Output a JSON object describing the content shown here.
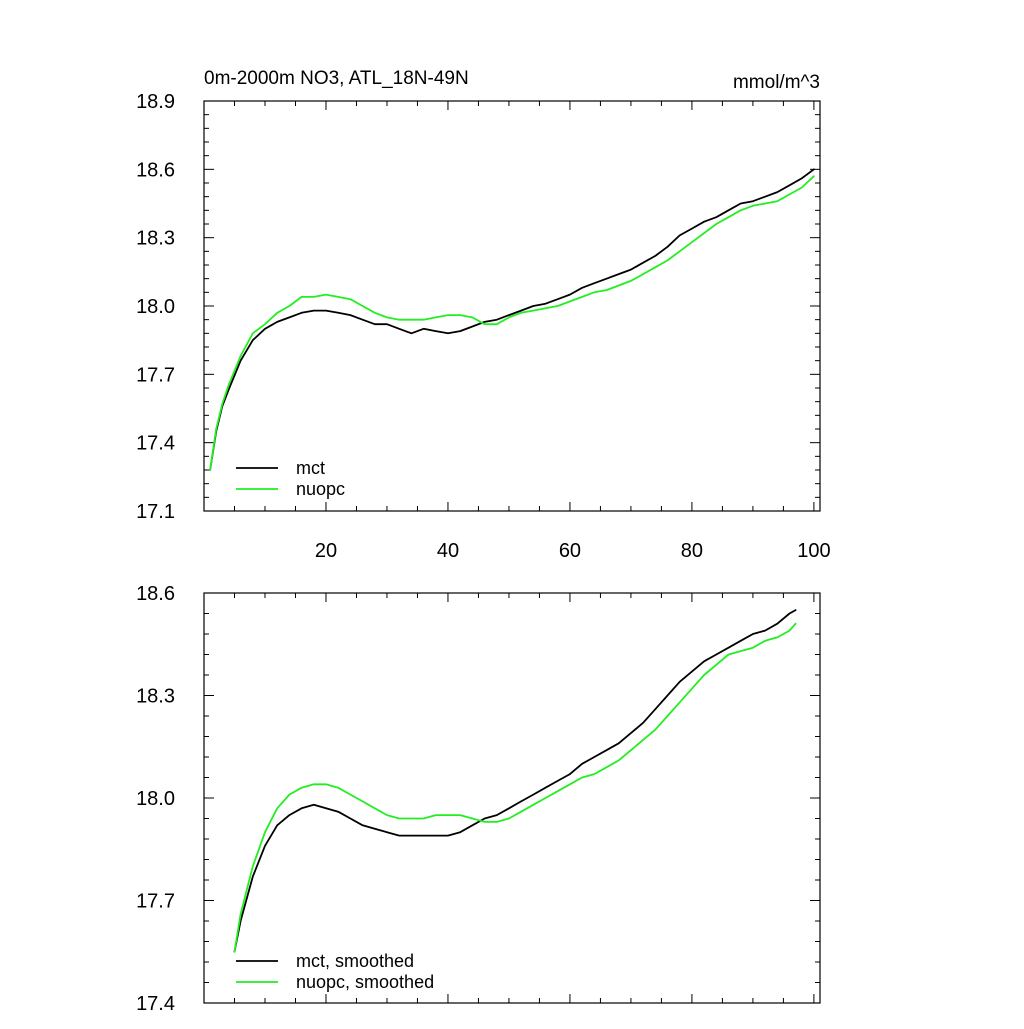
{
  "title_left": "0m-2000m NO3, ATL_18N-49N",
  "title_right": "mmol/m^3",
  "colors": {
    "mct": "#000000",
    "nuopc": "#22ee22",
    "axes": "#000000"
  },
  "chart_data": [
    {
      "type": "line",
      "title": "0m-2000m NO3, ATL_18N-49N",
      "units": "mmol/m^3",
      "xlim": [
        0,
        101
      ],
      "ylim": [
        17.1,
        18.9
      ],
      "xticks": [
        20,
        40,
        60,
        80,
        100
      ],
      "xtick_labels": [
        "20",
        "40",
        "60",
        "80",
        "100"
      ],
      "yticks": [
        17.1,
        17.4,
        17.7,
        18.0,
        18.3,
        18.6,
        18.9
      ],
      "ytick_labels": [
        "17.1",
        "17.4",
        "17.7",
        "18.0",
        "18.3",
        "18.6",
        "18.9"
      ],
      "legend": [
        "mct",
        "nuopc"
      ],
      "legend_position": "bottom-left",
      "series": [
        {
          "name": "mct",
          "color": "#000000",
          "x": [
            1,
            2,
            3,
            4,
            6,
            8,
            10,
            12,
            14,
            16,
            18,
            20,
            22,
            24,
            26,
            28,
            30,
            32,
            34,
            36,
            38,
            40,
            42,
            44,
            46,
            48,
            50,
            52,
            54,
            56,
            58,
            60,
            62,
            64,
            66,
            68,
            70,
            72,
            74,
            76,
            78,
            80,
            82,
            84,
            86,
            88,
            90,
            92,
            94,
            96,
            98,
            100
          ],
          "y": [
            17.28,
            17.45,
            17.56,
            17.63,
            17.76,
            17.85,
            17.9,
            17.93,
            17.95,
            17.97,
            17.98,
            17.98,
            17.97,
            17.96,
            17.94,
            17.92,
            17.92,
            17.9,
            17.88,
            17.9,
            17.89,
            17.88,
            17.89,
            17.91,
            17.93,
            17.94,
            17.96,
            17.98,
            18.0,
            18.01,
            18.03,
            18.05,
            18.08,
            18.1,
            18.12,
            18.14,
            18.16,
            18.19,
            18.22,
            18.26,
            18.31,
            18.34,
            18.37,
            18.39,
            18.42,
            18.45,
            18.46,
            18.48,
            18.5,
            18.53,
            18.56,
            18.6
          ]
        },
        {
          "name": "nuopc",
          "color": "#22ee22",
          "x": [
            1,
            2,
            3,
            4,
            6,
            8,
            10,
            12,
            14,
            16,
            18,
            20,
            22,
            24,
            26,
            28,
            30,
            32,
            34,
            36,
            38,
            40,
            42,
            44,
            46,
            48,
            50,
            52,
            54,
            56,
            58,
            60,
            62,
            64,
            66,
            68,
            70,
            72,
            74,
            76,
            78,
            80,
            82,
            84,
            86,
            88,
            90,
            92,
            94,
            96,
            98,
            100
          ],
          "y": [
            17.28,
            17.46,
            17.57,
            17.65,
            17.78,
            17.88,
            17.92,
            17.97,
            18.0,
            18.04,
            18.04,
            18.05,
            18.04,
            18.03,
            18.0,
            17.97,
            17.95,
            17.94,
            17.94,
            17.94,
            17.95,
            17.96,
            17.96,
            17.95,
            17.92,
            17.92,
            17.95,
            17.97,
            17.98,
            17.99,
            18.0,
            18.02,
            18.04,
            18.06,
            18.07,
            18.09,
            18.11,
            18.14,
            18.17,
            18.2,
            18.24,
            18.28,
            18.32,
            18.36,
            18.39,
            18.42,
            18.44,
            18.45,
            18.46,
            18.49,
            18.52,
            18.57
          ]
        }
      ]
    },
    {
      "type": "line",
      "xlim": [
        0,
        101
      ],
      "ylim": [
        17.4,
        18.6
      ],
      "xticks": [
        20,
        40,
        60,
        80,
        100
      ],
      "xtick_labels": [],
      "yticks": [
        17.4,
        17.7,
        18.0,
        18.3,
        18.6
      ],
      "ytick_labels": [
        "17.4",
        "17.7",
        "18.0",
        "18.3",
        "18.6"
      ],
      "legend": [
        "mct, smoothed",
        "nuopc, smoothed"
      ],
      "legend_position": "bottom-left",
      "series": [
        {
          "name": "mct, smoothed",
          "color": "#000000",
          "x": [
            5,
            6,
            8,
            10,
            12,
            14,
            16,
            18,
            20,
            22,
            24,
            26,
            28,
            30,
            32,
            34,
            36,
            38,
            40,
            42,
            44,
            46,
            48,
            50,
            52,
            54,
            56,
            58,
            60,
            62,
            64,
            66,
            68,
            70,
            72,
            74,
            76,
            78,
            80,
            82,
            84,
            86,
            88,
            90,
            92,
            94,
            96,
            97
          ],
          "y": [
            17.55,
            17.64,
            17.77,
            17.86,
            17.92,
            17.95,
            17.97,
            17.98,
            17.97,
            17.96,
            17.94,
            17.92,
            17.91,
            17.9,
            17.89,
            17.89,
            17.89,
            17.89,
            17.89,
            17.9,
            17.92,
            17.94,
            17.95,
            17.97,
            17.99,
            18.01,
            18.03,
            18.05,
            18.07,
            18.1,
            18.12,
            18.14,
            18.16,
            18.19,
            18.22,
            18.26,
            18.3,
            18.34,
            18.37,
            18.4,
            18.42,
            18.44,
            18.46,
            18.48,
            18.49,
            18.51,
            18.54,
            18.55
          ]
        },
        {
          "name": "nuopc, smoothed",
          "color": "#22ee22",
          "x": [
            5,
            6,
            8,
            10,
            12,
            14,
            16,
            18,
            20,
            22,
            24,
            26,
            28,
            30,
            32,
            34,
            36,
            38,
            40,
            42,
            44,
            46,
            48,
            50,
            52,
            54,
            56,
            58,
            60,
            62,
            64,
            66,
            68,
            70,
            72,
            74,
            76,
            78,
            80,
            82,
            84,
            86,
            88,
            90,
            92,
            94,
            96,
            97
          ],
          "y": [
            17.55,
            17.66,
            17.8,
            17.9,
            17.97,
            18.01,
            18.03,
            18.04,
            18.04,
            18.03,
            18.01,
            17.99,
            17.97,
            17.95,
            17.94,
            17.94,
            17.94,
            17.95,
            17.95,
            17.95,
            17.94,
            17.93,
            17.93,
            17.94,
            17.96,
            17.98,
            18.0,
            18.02,
            18.04,
            18.06,
            18.07,
            18.09,
            18.11,
            18.14,
            18.17,
            18.2,
            18.24,
            18.28,
            18.32,
            18.36,
            18.39,
            18.42,
            18.43,
            18.44,
            18.46,
            18.47,
            18.49,
            18.51
          ]
        }
      ]
    }
  ]
}
